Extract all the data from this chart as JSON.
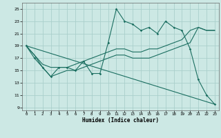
{
  "xlabel": "Humidex (Indice chaleur)",
  "bg_color": "#cce8e4",
  "grid_color": "#aacfcb",
  "line_color": "#1a6e60",
  "xlim": [
    -0.5,
    23.5
  ],
  "ylim": [
    8.5,
    26.0
  ],
  "xticks": [
    0,
    1,
    2,
    3,
    4,
    5,
    6,
    7,
    8,
    9,
    10,
    11,
    12,
    13,
    14,
    15,
    16,
    17,
    18,
    19,
    20,
    21,
    22,
    23
  ],
  "yticks": [
    9,
    11,
    13,
    15,
    17,
    19,
    21,
    23,
    25
  ],
  "series1_x": [
    0,
    1,
    2,
    3,
    4,
    5,
    6,
    7,
    8,
    9,
    10,
    11,
    12,
    13,
    14,
    15,
    16,
    17,
    18,
    19,
    20,
    21,
    22,
    23
  ],
  "series1_y": [
    19,
    17,
    15.5,
    14,
    15.5,
    15.5,
    15,
    16.5,
    14.5,
    14.5,
    19.5,
    25,
    23,
    22.5,
    21.5,
    22,
    21,
    23,
    22,
    21.5,
    18.5,
    13.5,
    11,
    9.5
  ],
  "series2_x": [
    0,
    1,
    2,
    3,
    4,
    5,
    6,
    7,
    8,
    9,
    10,
    11,
    12,
    13,
    14,
    15,
    16,
    17,
    18,
    19,
    20,
    21,
    22,
    23
  ],
  "series2_y": [
    19,
    17.5,
    16,
    15.5,
    15.5,
    15.5,
    16,
    16.5,
    17,
    17.5,
    18,
    18.5,
    18.5,
    18,
    18,
    18.5,
    18.5,
    19,
    19.5,
    20,
    21.5,
    22,
    21.5,
    21.5
  ],
  "series3_x": [
    0,
    1,
    2,
    3,
    4,
    5,
    6,
    7,
    8,
    9,
    10,
    11,
    12,
    13,
    14,
    15,
    16,
    17,
    18,
    19,
    20,
    21,
    22,
    23
  ],
  "series3_y": [
    19,
    17.5,
    15.5,
    14,
    14.5,
    15,
    15,
    15.5,
    16,
    16.5,
    17,
    17.5,
    17.5,
    17,
    17,
    17,
    17.5,
    18,
    18.5,
    19,
    19.5,
    22,
    21.5,
    21.5
  ],
  "series4_x": [
    0,
    23
  ],
  "series4_y": [
    19,
    9.5
  ]
}
